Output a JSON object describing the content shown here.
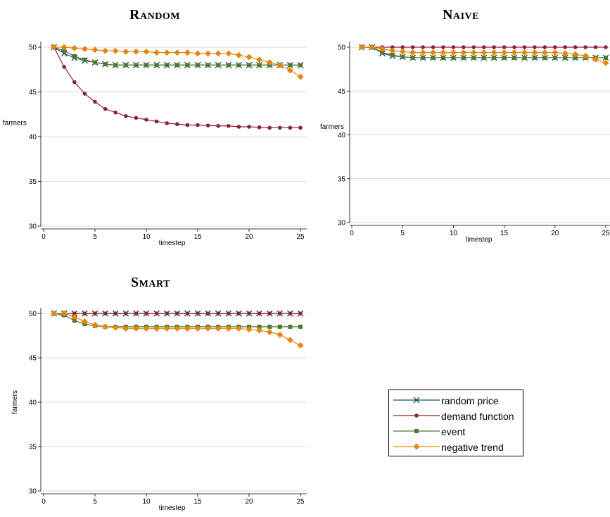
{
  "colors": {
    "random_price": "#1a4d6e",
    "demand_function": "#8b2332",
    "event": "#4f7a2e",
    "negative_trend": "#e8860c",
    "grid": "#d0d0d0",
    "frame": "#ffffff"
  },
  "chart_data": [
    {
      "type": "line",
      "title": "Random",
      "xlabel": "timestep",
      "ylabel": "farmers",
      "xlim": [
        0,
        25
      ],
      "ylim": [
        30,
        50
      ],
      "xticks": [
        0,
        5,
        10,
        15,
        20,
        25
      ],
      "yticks": [
        30,
        35,
        40,
        45,
        50
      ],
      "x": [
        1,
        2,
        3,
        4,
        5,
        6,
        7,
        8,
        9,
        10,
        11,
        12,
        13,
        14,
        15,
        16,
        17,
        18,
        19,
        20,
        21,
        22,
        23,
        24,
        25
      ],
      "series": [
        {
          "name": "random price",
          "values": [
            50,
            49.3,
            48.8,
            48.5,
            48.3,
            48.1,
            48,
            48,
            48,
            48,
            48,
            48,
            48,
            48,
            48,
            48,
            48,
            48,
            48,
            48,
            48,
            48,
            48,
            48,
            48
          ]
        },
        {
          "name": "demand function",
          "values": [
            50,
            47.8,
            46.1,
            44.8,
            43.9,
            43.1,
            42.7,
            42.3,
            42.1,
            41.9,
            41.7,
            41.5,
            41.4,
            41.3,
            41.3,
            41.25,
            41.2,
            41.2,
            41.1,
            41.1,
            41.05,
            41,
            41,
            41,
            41
          ]
        },
        {
          "name": "event",
          "values": [
            50,
            49.6,
            49,
            48.6,
            48.3,
            48.1,
            48,
            48,
            48,
            48,
            48,
            48,
            48,
            48,
            48,
            48,
            48,
            48,
            48,
            48,
            48,
            48,
            48,
            48,
            48
          ]
        },
        {
          "name": "negative trend",
          "values": [
            50,
            50,
            49.9,
            49.8,
            49.7,
            49.6,
            49.6,
            49.5,
            49.5,
            49.5,
            49.4,
            49.4,
            49.4,
            49.4,
            49.3,
            49.3,
            49.3,
            49.3,
            49.1,
            48.9,
            48.6,
            48.3,
            48,
            47.4,
            46.7
          ]
        }
      ]
    },
    {
      "type": "line",
      "title": "Naive",
      "xlabel": "timestep",
      "ylabel": "farmers",
      "xlim": [
        0,
        25
      ],
      "ylim": [
        30,
        50
      ],
      "xticks": [
        0,
        5,
        10,
        15,
        20,
        25
      ],
      "yticks": [
        30,
        35,
        40,
        45,
        50
      ],
      "x": [
        1,
        2,
        3,
        4,
        5,
        6,
        7,
        8,
        9,
        10,
        11,
        12,
        13,
        14,
        15,
        16,
        17,
        18,
        19,
        20,
        21,
        22,
        23,
        24,
        25
      ],
      "series": [
        {
          "name": "random price",
          "values": [
            50,
            50,
            49.3,
            49,
            48.9,
            48.8,
            48.8,
            48.8,
            48.8,
            48.8,
            48.8,
            48.8,
            48.8,
            48.8,
            48.8,
            48.8,
            48.8,
            48.8,
            48.8,
            48.8,
            48.8,
            48.8,
            48.8,
            48.8,
            48.8
          ]
        },
        {
          "name": "demand function",
          "values": [
            50,
            50,
            50,
            50,
            50,
            50,
            50,
            50,
            50,
            50,
            50,
            50,
            50,
            50,
            50,
            50,
            50,
            50,
            50,
            50,
            50,
            50,
            50,
            50,
            50
          ]
        },
        {
          "name": "event",
          "values": [
            50,
            50,
            49.4,
            49.1,
            48.9,
            48.8,
            48.8,
            48.8,
            48.8,
            48.8,
            48.8,
            48.8,
            48.8,
            48.8,
            48.8,
            48.8,
            48.8,
            48.8,
            48.8,
            48.8,
            48.8,
            48.8,
            48.8,
            48.8,
            48.8
          ]
        },
        {
          "name": "negative trend",
          "values": [
            50,
            50,
            49.8,
            49.6,
            49.5,
            49.4,
            49.4,
            49.4,
            49.4,
            49.4,
            49.4,
            49.4,
            49.4,
            49.4,
            49.4,
            49.4,
            49.4,
            49.4,
            49.4,
            49.4,
            49.3,
            49.2,
            49,
            48.6,
            48.2
          ]
        }
      ]
    },
    {
      "type": "line",
      "title": "Smart",
      "xlabel": "timestep",
      "ylabel": "farmers",
      "xlim": [
        0,
        25
      ],
      "ylim": [
        30,
        50
      ],
      "xticks": [
        0,
        5,
        10,
        15,
        20,
        25
      ],
      "yticks": [
        30,
        35,
        40,
        45,
        50
      ],
      "x": [
        1,
        2,
        3,
        4,
        5,
        6,
        7,
        8,
        9,
        10,
        11,
        12,
        13,
        14,
        15,
        16,
        17,
        18,
        19,
        20,
        21,
        22,
        23,
        24,
        25
      ],
      "series": [
        {
          "name": "random price",
          "values": [
            50,
            50,
            50,
            50,
            50,
            50,
            50,
            50,
            50,
            50,
            50,
            50,
            50,
            50,
            50,
            50,
            50,
            50,
            50,
            50,
            50,
            50,
            50,
            50,
            50
          ]
        },
        {
          "name": "demand function",
          "values": [
            50,
            50,
            50,
            50,
            50,
            50,
            50,
            50,
            50,
            50,
            50,
            50,
            50,
            50,
            50,
            50,
            50,
            50,
            50,
            50,
            50,
            50,
            50,
            50,
            50
          ]
        },
        {
          "name": "event",
          "values": [
            50,
            49.8,
            49.2,
            48.8,
            48.6,
            48.5,
            48.5,
            48.5,
            48.5,
            48.5,
            48.5,
            48.5,
            48.5,
            48.5,
            48.5,
            48.5,
            48.5,
            48.5,
            48.5,
            48.5,
            48.5,
            48.5,
            48.5,
            48.5,
            48.5
          ]
        },
        {
          "name": "negative trend",
          "values": [
            50,
            50,
            49.6,
            49.1,
            48.7,
            48.5,
            48.4,
            48.3,
            48.3,
            48.3,
            48.3,
            48.3,
            48.3,
            48.3,
            48.3,
            48.3,
            48.3,
            48.3,
            48.3,
            48.2,
            48.1,
            47.9,
            47.6,
            47.0,
            46.4
          ]
        }
      ]
    }
  ],
  "legend": {
    "items": [
      {
        "label": "random price",
        "marker": "x"
      },
      {
        "label": "demand function",
        "marker": "circle"
      },
      {
        "label": "event",
        "marker": "square"
      },
      {
        "label": "negative trend",
        "marker": "diamond"
      }
    ]
  }
}
